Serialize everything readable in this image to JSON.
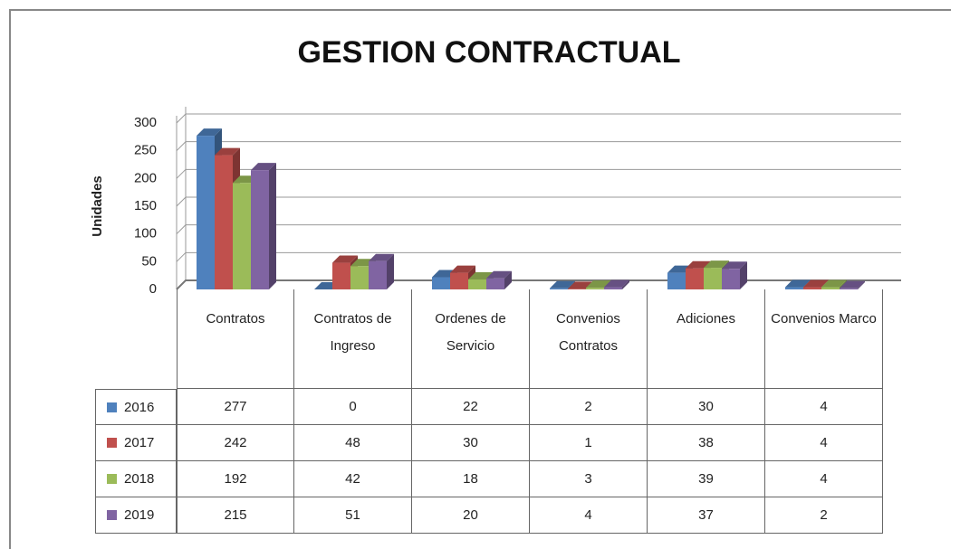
{
  "chart_data": {
    "type": "bar",
    "title": "GESTION CONTRACTUAL",
    "y_label": "Unidades",
    "categories": [
      "Contratos",
      "Contratos de Ingreso",
      "Ordenes de Servicio",
      "Convenios Contratos",
      "Adiciones",
      "Convenios Marco"
    ],
    "series": [
      {
        "name": "2016",
        "color": "#4f81bd",
        "values": [
          277,
          0,
          22,
          2,
          30,
          4
        ]
      },
      {
        "name": "2017",
        "color": "#c0504d",
        "values": [
          242,
          48,
          30,
          1,
          38,
          4
        ]
      },
      {
        "name": "2018",
        "color": "#9bbb59",
        "values": [
          192,
          42,
          18,
          3,
          39,
          4
        ]
      },
      {
        "name": "2019",
        "color": "#8064a2",
        "values": [
          215,
          51,
          20,
          4,
          37,
          2
        ]
      }
    ],
    "ylim": [
      0,
      300
    ],
    "yticks": [
      0,
      50,
      100,
      150,
      200,
      250,
      300
    ],
    "grid": true
  }
}
